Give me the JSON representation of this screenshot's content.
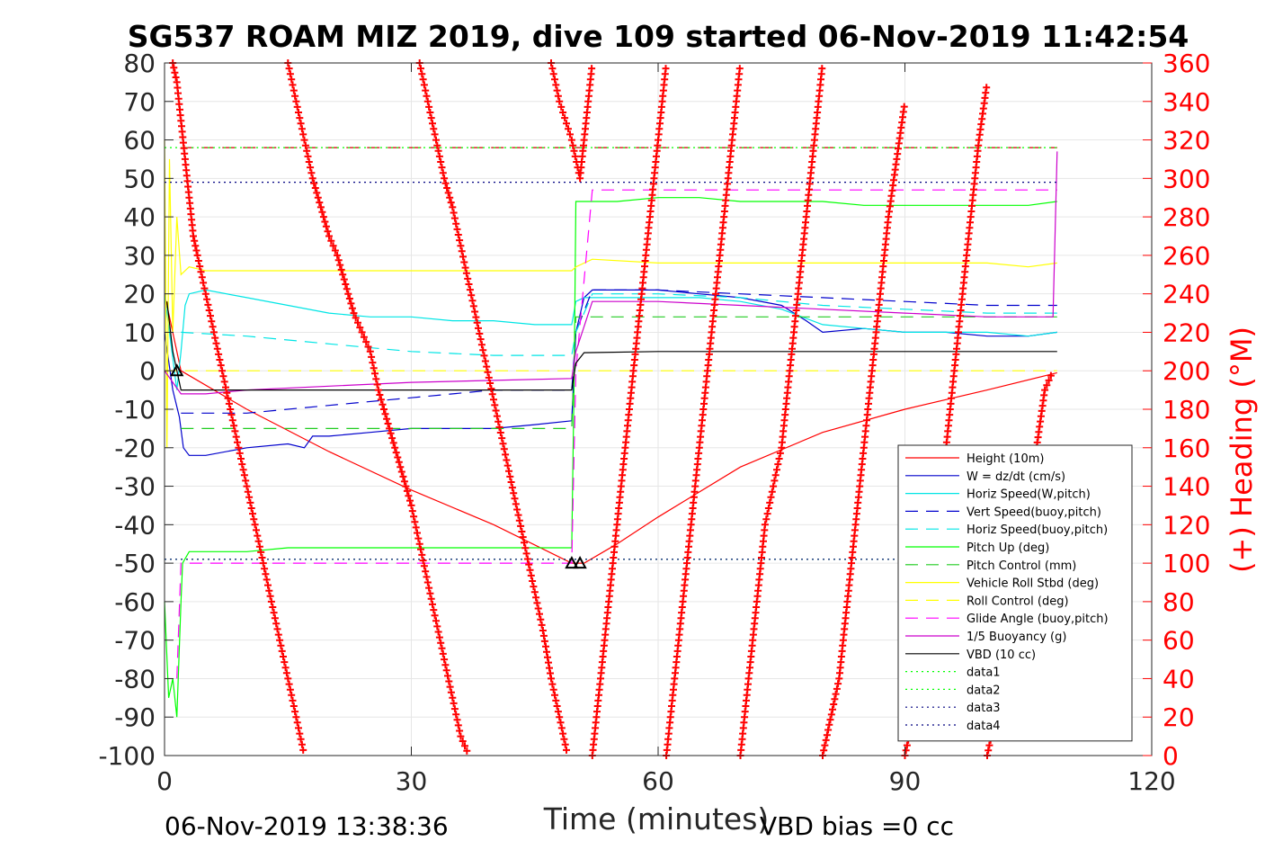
{
  "chart_data": {
    "type": "line",
    "title": "SG537 ROAM MIZ 2019, dive 109 started 06-Nov-2019 11:42:54",
    "xlabel": "Time (minutes)",
    "ylabel": "",
    "ylabel_right": "(+) Heading (°M)",
    "xlim": [
      0,
      120
    ],
    "ylim": [
      -100,
      80
    ],
    "ylim_right": [
      0,
      360
    ],
    "xticks": [
      "0",
      "30",
      "60",
      "90",
      "120"
    ],
    "yticks": [
      "80",
      "70",
      "60",
      "50",
      "40",
      "30",
      "20",
      "10",
      "0",
      "-10",
      "-20",
      "-30",
      "-40",
      "-50",
      "-60",
      "-70",
      "-80",
      "-90",
      "-100"
    ],
    "yticks_right": [
      "360",
      "340",
      "320",
      "300",
      "280",
      "260",
      "240",
      "220",
      "200",
      "180",
      "160",
      "140",
      "120",
      "100",
      "80",
      "60",
      "40",
      "20",
      "0"
    ],
    "grid": true,
    "legend_position": "lower-right",
    "footer_left": "06-Nov-2019 13:38:36",
    "footer_right": "VBD bias =0 cc",
    "series": [
      {
        "name": "Height (10m)",
        "color": "#ff0000",
        "style": "solid",
        "x": [
          0,
          2,
          10,
          20,
          30,
          40,
          49.5,
          51,
          55,
          60,
          70,
          80,
          90,
          100,
          108.5
        ],
        "y": [
          20,
          0,
          -10,
          -21,
          -31,
          -40,
          -50,
          -50,
          -45,
          -38,
          -25,
          -16,
          -10,
          -5,
          -0.5
        ]
      },
      {
        "name": "W = dz/dt (cm/s)",
        "color": "#0000cc",
        "style": "solid",
        "x": [
          0,
          1,
          1.8,
          2.3,
          3,
          5,
          10,
          15,
          17,
          18,
          20,
          25,
          30,
          35,
          40,
          45,
          49.5,
          50,
          51,
          52,
          55,
          60,
          65,
          70,
          75,
          78,
          80,
          85,
          90,
          95,
          100,
          105,
          108.5
        ],
        "y": [
          10,
          -5,
          -12,
          -20,
          -22,
          -22,
          -20,
          -19,
          -20,
          -17,
          -17,
          -16,
          -15,
          -15,
          -15,
          -14,
          -13,
          10,
          19,
          21,
          21,
          21,
          20,
          19,
          17,
          13,
          10,
          11,
          10,
          10,
          9,
          9,
          10
        ]
      },
      {
        "name": "Horiz Speed(W,pitch)",
        "color": "#00e5e5",
        "style": "solid",
        "x": [
          0,
          1.5,
          2,
          2.5,
          3,
          5,
          10,
          15,
          20,
          25,
          30,
          35,
          40,
          45,
          49.5,
          50,
          51,
          52,
          55,
          60,
          65,
          70,
          75,
          80,
          85,
          90,
          95,
          100,
          105,
          108.5
        ],
        "y": [
          20,
          -5,
          5,
          17,
          20,
          21,
          19,
          17,
          15,
          14,
          14,
          13,
          13,
          12,
          12,
          18,
          19,
          19,
          19,
          19,
          19,
          18,
          16,
          12,
          11,
          10,
          10,
          10,
          9,
          10
        ]
      },
      {
        "name": "Vert Speed(buoy,pitch)",
        "color": "#0000cc",
        "style": "dashed",
        "x": [
          2,
          10,
          20,
          30,
          40,
          49.5,
          50,
          52,
          60,
          70,
          80,
          90,
          100,
          108.5
        ],
        "y": [
          -11,
          -11,
          -9,
          -7,
          -5,
          -5,
          10,
          21,
          21,
          20,
          19,
          18,
          17,
          17
        ]
      },
      {
        "name": "Horiz Speed(buoy,pitch)",
        "color": "#00e5e5",
        "style": "dashed",
        "x": [
          2,
          10,
          20,
          30,
          40,
          49.5,
          50,
          52,
          60,
          70,
          80,
          90,
          100,
          108.5
        ],
        "y": [
          10,
          9,
          7,
          5,
          4,
          4,
          10,
          20,
          20,
          19,
          17,
          16,
          15,
          15
        ]
      },
      {
        "name": "Pitch Up (deg)",
        "color": "#00ff00",
        "style": "solid",
        "x": [
          0,
          0.5,
          1,
          1.5,
          2,
          2.2,
          3,
          5,
          10,
          15,
          20,
          25,
          30,
          35,
          40,
          45,
          49.5,
          49.8,
          50,
          51,
          55,
          60,
          65,
          70,
          75,
          80,
          85,
          90,
          95,
          100,
          105,
          108.5
        ],
        "y": [
          -60,
          -85,
          -80,
          -90,
          -60,
          -50,
          -47,
          -47,
          -47,
          -46,
          -46,
          -46,
          -46,
          -46,
          -46,
          -46,
          -46,
          0,
          44,
          44,
          44,
          45,
          45,
          44,
          44,
          44,
          43,
          43,
          43,
          43,
          43,
          44
        ]
      },
      {
        "name": "Pitch Control (mm)",
        "color": "#22cc22",
        "style": "dashed",
        "x": [
          2,
          49.5,
          50,
          108.5
        ],
        "y": [
          -15,
          -15,
          14,
          14
        ]
      },
      {
        "name": "Vehicle Roll Stbd (deg)",
        "color": "#ffff00",
        "style": "solid",
        "x": [
          0,
          0.3,
          0.6,
          1,
          1.5,
          2,
          3,
          5,
          10,
          20,
          30,
          40,
          49.5,
          50,
          52,
          60,
          70,
          80,
          90,
          100,
          105,
          108.5
        ],
        "y": [
          60,
          -20,
          55,
          10,
          40,
          25,
          27,
          26,
          26,
          26,
          26,
          26,
          26,
          27,
          29,
          28,
          28,
          28,
          28,
          28,
          27,
          28
        ]
      },
      {
        "name": "Roll Control (deg)",
        "color": "#ffff00",
        "style": "dashed",
        "x": [
          0,
          108.5
        ],
        "y": [
          0,
          0
        ]
      },
      {
        "name": "Glide Angle (buoy,pitch)",
        "color": "#ff00ff",
        "style": "dashed",
        "x": [
          1.5,
          2,
          3,
          10,
          20,
          30,
          40,
          49.5,
          50,
          52,
          60,
          70,
          80,
          90,
          100,
          108.5
        ],
        "y": [
          -80,
          -50,
          -50,
          -50,
          -50,
          -50,
          -50,
          -50,
          0,
          47,
          47,
          47,
          47,
          47,
          47,
          47
        ]
      },
      {
        "name": "1/5 Buoyancy (g)",
        "color": "#cc00cc",
        "style": "solid",
        "x": [
          0,
          1,
          2,
          5,
          10,
          20,
          30,
          40,
          49.5,
          50,
          52,
          60,
          70,
          80,
          90,
          100,
          108,
          108.5
        ],
        "y": [
          0,
          -3,
          -6,
          -6,
          -5,
          -4,
          -3,
          -2.5,
          -2,
          5,
          18,
          18,
          17,
          16,
          15,
          14,
          14,
          57
        ]
      },
      {
        "name": "VBD (10 cc)",
        "color": "#000000",
        "style": "solid",
        "x": [
          0.3,
          1,
          2,
          5,
          20,
          40,
          49.5,
          50,
          51,
          60,
          80,
          100,
          108.5
        ],
        "y": [
          18,
          5,
          -5,
          -5,
          -5,
          -5,
          -5,
          2,
          4.7,
          5,
          5,
          5,
          5
        ]
      },
      {
        "name": "data1",
        "color": "#00ff00",
        "style": "dotted",
        "x": [
          0,
          108.5
        ],
        "y": [
          58,
          58
        ]
      },
      {
        "name": "data2",
        "color": "#00ff00",
        "style": "dotted",
        "x": [
          0,
          108.5
        ],
        "y": [
          -49,
          -49
        ]
      },
      {
        "name": "data3",
        "color": "#000080",
        "style": "dotted",
        "x": [
          0,
          108.5
        ],
        "y": [
          49,
          49
        ]
      },
      {
        "name": "data4",
        "color": "#000080",
        "style": "dotted",
        "x": [
          0,
          108.5
        ],
        "y": [
          -49,
          -49
        ]
      }
    ],
    "extra_lines": [
      {
        "color": "#cc0000",
        "style": "dashed",
        "x": [
          2,
          108.5
        ],
        "y": [
          58,
          58
        ]
      }
    ],
    "heading": {
      "color": "#ff0000",
      "axis": "right",
      "segments": [
        [
          [
            1,
            360
          ],
          [
            1.5,
            350
          ],
          [
            2,
            330
          ],
          [
            2.5,
            310
          ],
          [
            3,
            290
          ],
          [
            3.5,
            270
          ],
          [
            4,
            260
          ],
          [
            5,
            240
          ],
          [
            6,
            220
          ],
          [
            7,
            200
          ],
          [
            8,
            180
          ],
          [
            9,
            160
          ],
          [
            10,
            140
          ],
          [
            11,
            120
          ],
          [
            12,
            100
          ],
          [
            13,
            80
          ],
          [
            14,
            60
          ],
          [
            15,
            40
          ],
          [
            16,
            20
          ],
          [
            17,
            0
          ]
        ],
        [
          [
            15,
            360
          ],
          [
            16,
            340
          ],
          [
            17,
            320
          ],
          [
            18,
            300
          ],
          [
            19,
            285
          ],
          [
            20,
            270
          ],
          [
            21,
            260
          ],
          [
            22,
            245
          ],
          [
            23,
            230
          ],
          [
            25,
            210
          ],
          [
            26,
            190
          ],
          [
            27,
            175
          ],
          [
            28,
            160
          ],
          [
            29,
            145
          ],
          [
            30,
            130
          ],
          [
            31,
            110
          ],
          [
            32,
            90
          ],
          [
            33,
            70
          ],
          [
            34,
            50
          ],
          [
            35,
            30
          ],
          [
            36,
            10
          ],
          [
            37,
            0
          ]
        ],
        [
          [
            31,
            360
          ],
          [
            32,
            340
          ],
          [
            33,
            320
          ],
          [
            34,
            300
          ],
          [
            35,
            285
          ],
          [
            36,
            265
          ],
          [
            37,
            245
          ],
          [
            38,
            225
          ],
          [
            39,
            205
          ],
          [
            40,
            185
          ],
          [
            41,
            165
          ],
          [
            42,
            145
          ],
          [
            43,
            125
          ],
          [
            44,
            105
          ],
          [
            45,
            85
          ],
          [
            46,
            65
          ],
          [
            47,
            40
          ],
          [
            48,
            20
          ],
          [
            49,
            0
          ]
        ],
        [
          [
            47,
            360
          ],
          [
            48,
            340
          ],
          [
            49.5,
            320
          ],
          [
            50.5,
            300
          ],
          [
            51,
            320
          ],
          [
            51.5,
            340
          ],
          [
            52,
            360
          ]
        ],
        [
          [
            52,
            0
          ],
          [
            53,
            40
          ],
          [
            54,
            80
          ],
          [
            55,
            120
          ],
          [
            56,
            160
          ],
          [
            57,
            200
          ],
          [
            58,
            240
          ],
          [
            59,
            280
          ],
          [
            60,
            320
          ],
          [
            61,
            360
          ]
        ],
        [
          [
            61,
            0
          ],
          [
            62,
            40
          ],
          [
            63,
            80
          ],
          [
            64,
            120
          ],
          [
            65,
            160
          ],
          [
            66,
            200
          ],
          [
            67,
            240
          ],
          [
            68,
            280
          ],
          [
            69,
            320
          ],
          [
            70,
            360
          ]
        ],
        [
          [
            70,
            0
          ],
          [
            71,
            40
          ],
          [
            72,
            80
          ],
          [
            73,
            120
          ],
          [
            74,
            140
          ],
          [
            75,
            160
          ],
          [
            76,
            200
          ],
          [
            77,
            240
          ],
          [
            78,
            280
          ],
          [
            79,
            320
          ],
          [
            80,
            360
          ]
        ],
        [
          [
            80,
            0
          ],
          [
            82,
            40
          ],
          [
            83,
            80
          ],
          [
            84,
            120
          ],
          [
            85,
            160
          ],
          [
            86,
            200
          ],
          [
            87,
            240
          ],
          [
            88,
            280
          ],
          [
            89,
            310
          ],
          [
            90,
            340
          ]
        ],
        [
          [
            90,
            0
          ],
          [
            92,
            40
          ],
          [
            93,
            80
          ],
          [
            94,
            120
          ],
          [
            95,
            160
          ],
          [
            96,
            200
          ],
          [
            97,
            240
          ],
          [
            98,
            280
          ],
          [
            99,
            320
          ],
          [
            100,
            350
          ]
        ],
        [
          [
            100,
            0
          ],
          [
            102,
            40
          ],
          [
            104,
            80
          ],
          [
            105,
            120
          ],
          [
            106,
            160
          ],
          [
            107,
            190
          ],
          [
            108,
            200
          ]
        ]
      ]
    },
    "markers": [
      {
        "shape": "triangle",
        "x": 1.5,
        "y": 0
      },
      {
        "shape": "triangle",
        "x": 49.5,
        "y": -50
      },
      {
        "shape": "triangle",
        "x": 50.5,
        "y": -50
      }
    ]
  }
}
